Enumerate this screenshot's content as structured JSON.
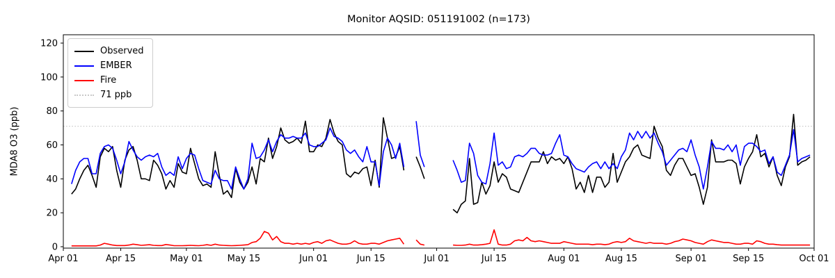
{
  "chart_data": {
    "type": "line",
    "title": "Monitor AQSID: 051191002 (n=173)",
    "ylabel": "MDA8 O3 (ppb)",
    "xlabel": "",
    "ylim": [
      0,
      125
    ],
    "yticks": [
      0,
      20,
      40,
      60,
      80,
      100,
      120
    ],
    "x_axis": "days from Apr 01, one point per day, gaps where monitor data missing",
    "n_points": 173,
    "xticks": [
      {
        "d": 0,
        "label": "Apr 01"
      },
      {
        "d": 14,
        "label": "Apr 15"
      },
      {
        "d": 30,
        "label": "May 01"
      },
      {
        "d": 44,
        "label": "May 15"
      },
      {
        "d": 61,
        "label": "Jun 01"
      },
      {
        "d": 75,
        "label": "Jun 15"
      },
      {
        "d": 91,
        "label": "Jul 01"
      },
      {
        "d": 105,
        "label": "Jul 15"
      },
      {
        "d": 122,
        "label": "Aug 01"
      },
      {
        "d": 136,
        "label": "Aug 15"
      },
      {
        "d": 153,
        "label": "Sep 01"
      },
      {
        "d": 167,
        "label": "Sep 15"
      },
      {
        "d": 183,
        "label": "Oct 01"
      }
    ],
    "threshold": {
      "value": 71,
      "label": "71 ppb",
      "color": "#c8c8c8",
      "style": "dotted"
    },
    "legend_position": "upper-left",
    "grid": false,
    "series": [
      {
        "name": "Observed",
        "color": "#000000",
        "values": [
          null,
          null,
          31,
          34,
          40,
          45,
          48,
          42,
          35,
          53,
          58,
          56,
          59,
          45,
          35,
          51,
          57,
          59,
          51,
          40,
          40,
          39,
          51,
          48,
          43,
          34,
          39,
          35,
          49,
          44,
          43,
          58,
          49,
          40,
          36,
          37,
          35,
          56,
          42,
          31,
          33,
          29,
          46,
          38,
          34,
          38,
          47,
          37,
          52,
          50,
          64,
          52,
          59,
          70,
          63,
          61,
          62,
          64,
          61,
          74,
          56,
          56,
          60,
          59,
          64,
          75,
          67,
          62,
          60,
          43,
          41,
          44,
          43,
          46,
          47,
          36,
          51,
          35,
          76,
          64,
          52,
          53,
          59,
          45,
          null,
          null,
          53,
          47,
          40,
          null,
          null,
          null,
          null,
          null,
          null,
          22,
          20,
          25,
          27,
          52,
          25,
          26,
          38,
          31,
          36,
          50,
          38,
          43,
          41,
          34,
          33,
          32,
          38,
          44,
          50,
          50,
          50,
          56,
          49,
          53,
          51,
          52,
          49,
          53,
          46,
          34,
          38,
          32,
          42,
          32,
          41,
          41,
          35,
          38,
          55,
          38,
          44,
          50,
          53,
          58,
          60,
          54,
          53,
          52,
          71,
          64,
          59,
          45,
          42,
          48,
          52,
          52,
          47,
          42,
          43,
          35,
          25,
          35,
          63,
          50,
          50,
          50,
          51,
          51,
          49,
          37,
          47,
          52,
          56,
          66,
          53,
          55,
          47,
          53,
          42,
          36,
          47,
          53,
          78,
          48,
          50,
          51,
          53
        ]
      },
      {
        "name": "EMBER",
        "color": "#0000ff",
        "values": [
          null,
          null,
          37,
          45,
          50,
          52,
          52,
          43,
          43,
          55,
          59,
          60,
          58,
          51,
          43,
          50,
          62,
          57,
          53,
          51,
          53,
          54,
          53,
          55,
          47,
          42,
          44,
          42,
          53,
          46,
          52,
          55,
          54,
          46,
          39,
          38,
          37,
          45,
          40,
          39,
          39,
          34,
          47,
          40,
          34,
          40,
          61,
          52,
          53,
          57,
          63,
          56,
          62,
          66,
          64,
          64,
          65,
          64,
          64,
          67,
          60,
          59,
          59,
          61,
          63,
          70,
          65,
          64,
          62,
          57,
          55,
          57,
          53,
          50,
          59,
          50,
          50,
          36,
          56,
          64,
          60,
          52,
          61,
          47,
          null,
          null,
          74,
          54,
          47,
          null,
          null,
          null,
          null,
          null,
          null,
          51,
          45,
          38,
          39,
          61,
          55,
          42,
          38,
          37,
          49,
          67,
          48,
          50,
          46,
          47,
          53,
          54,
          53,
          55,
          58,
          58,
          55,
          54,
          54,
          55,
          61,
          66,
          54,
          53,
          49,
          46,
          45,
          44,
          47,
          49,
          50,
          46,
          50,
          46,
          49,
          46,
          53,
          57,
          67,
          63,
          68,
          64,
          68,
          64,
          67,
          61,
          56,
          48,
          51,
          54,
          57,
          58,
          56,
          63,
          54,
          47,
          34,
          47,
          62,
          58,
          58,
          57,
          60,
          56,
          60,
          48,
          59,
          61,
          61,
          59,
          56,
          57,
          49,
          53,
          44,
          42,
          48,
          54,
          69,
          50,
          52,
          53,
          54
        ]
      },
      {
        "name": "Fire",
        "color": "#ff0000",
        "values": [
          null,
          null,
          0.5,
          0.5,
          0.5,
          0.5,
          0.5,
          0.5,
          0.5,
          1,
          2,
          1.5,
          1,
          0.7,
          0.7,
          0.7,
          1,
          1.5,
          1.2,
          0.8,
          1,
          1.2,
          0.8,
          0.7,
          0.7,
          1.3,
          1,
          0.6,
          0.6,
          0.6,
          0.7,
          0.8,
          0.7,
          0.6,
          0.8,
          1.2,
          0.8,
          1.5,
          1,
          0.8,
          0.7,
          0.6,
          0.7,
          0.8,
          1,
          1.2,
          2.5,
          3,
          5,
          9,
          8,
          4,
          6,
          3,
          2,
          2,
          1.5,
          2,
          1.5,
          2,
          1.5,
          2.5,
          3,
          2,
          3.5,
          4,
          3,
          2,
          1.5,
          1.5,
          2,
          3.5,
          2,
          1.5,
          1.5,
          2,
          2,
          1.5,
          2.5,
          3.5,
          4,
          4.5,
          5,
          1.5,
          null,
          null,
          4,
          1.5,
          1,
          null,
          null,
          null,
          null,
          null,
          null,
          1,
          0.8,
          0.8,
          1,
          1.5,
          1,
          1,
          1.2,
          1.5,
          2,
          10,
          1.5,
          1,
          1,
          1.5,
          3.5,
          4,
          3.5,
          5.5,
          3.5,
          3,
          3.5,
          3,
          2.5,
          2,
          2,
          2,
          3,
          2.5,
          2,
          1.5,
          1.5,
          1.5,
          1.5,
          1.2,
          1.5,
          1.5,
          1.2,
          1.5,
          2.5,
          3,
          2.5,
          3,
          5,
          3.5,
          3,
          2.5,
          2,
          2.5,
          2,
          2,
          2,
          1.5,
          2,
          3,
          3.5,
          4.5,
          4,
          3.5,
          2.5,
          2,
          1.5,
          3,
          4,
          3.5,
          3,
          2.5,
          2.5,
          2,
          1.5,
          1.5,
          2,
          2,
          1.5,
          3.5,
          3,
          2,
          1.5,
          1.5,
          1.2,
          1,
          1,
          1,
          1,
          1,
          1,
          1,
          1
        ]
      }
    ]
  },
  "legend": {
    "items": [
      {
        "label": "Observed"
      },
      {
        "label": "EMBER"
      },
      {
        "label": "Fire"
      },
      {
        "label": "71 ppb"
      }
    ]
  }
}
